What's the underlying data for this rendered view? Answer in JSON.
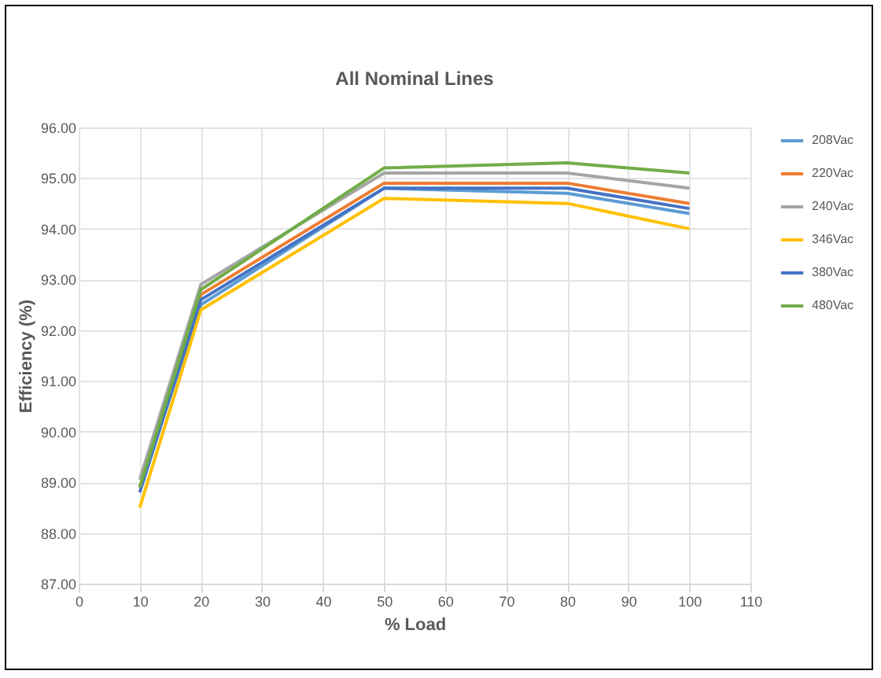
{
  "chart_data": {
    "type": "line",
    "title": "All Nominal Lines",
    "xlabel": "% Load",
    "ylabel": "Efficiency (%)",
    "x": [
      10,
      20,
      50,
      80,
      100
    ],
    "series": [
      {
        "name": "208Vac",
        "color": "#5b9bd5",
        "values": [
          88.9,
          92.5,
          94.8,
          94.7,
          94.3
        ]
      },
      {
        "name": "220Vac",
        "color": "#ed7d31",
        "values": [
          88.9,
          92.7,
          94.9,
          94.9,
          94.5
        ]
      },
      {
        "name": "240Vac",
        "color": "#a5a5a5",
        "values": [
          89.05,
          92.9,
          95.1,
          95.1,
          94.8
        ]
      },
      {
        "name": "346Vac",
        "color": "#ffc000",
        "values": [
          88.5,
          92.4,
          94.6,
          94.5,
          94.0
        ]
      },
      {
        "name": "380Vac",
        "color": "#4472c4",
        "values": [
          88.8,
          92.6,
          94.8,
          94.8,
          94.4
        ]
      },
      {
        "name": "480Vac",
        "color": "#70ad47",
        "values": [
          88.9,
          92.8,
          95.2,
          95.3,
          95.1
        ]
      }
    ],
    "xlim": [
      0,
      110
    ],
    "xticks": [
      0,
      10,
      20,
      30,
      40,
      50,
      60,
      70,
      80,
      90,
      100,
      110
    ],
    "ylim": [
      87,
      96
    ],
    "yticks": [
      {
        "value": 87,
        "label": "87.00"
      },
      {
        "value": 88,
        "label": "88.00"
      },
      {
        "value": 89,
        "label": "89.00"
      },
      {
        "value": 90,
        "label": "90.00"
      },
      {
        "value": 91,
        "label": "91.00"
      },
      {
        "value": 92,
        "label": "92.00"
      },
      {
        "value": 93,
        "label": "93.00"
      },
      {
        "value": 94,
        "label": "94.00"
      },
      {
        "value": 95,
        "label": "95.00"
      },
      {
        "value": 96,
        "label": "96.00"
      }
    ],
    "grid": true,
    "legend": "right",
    "marker": "none",
    "line_style": "solid"
  }
}
